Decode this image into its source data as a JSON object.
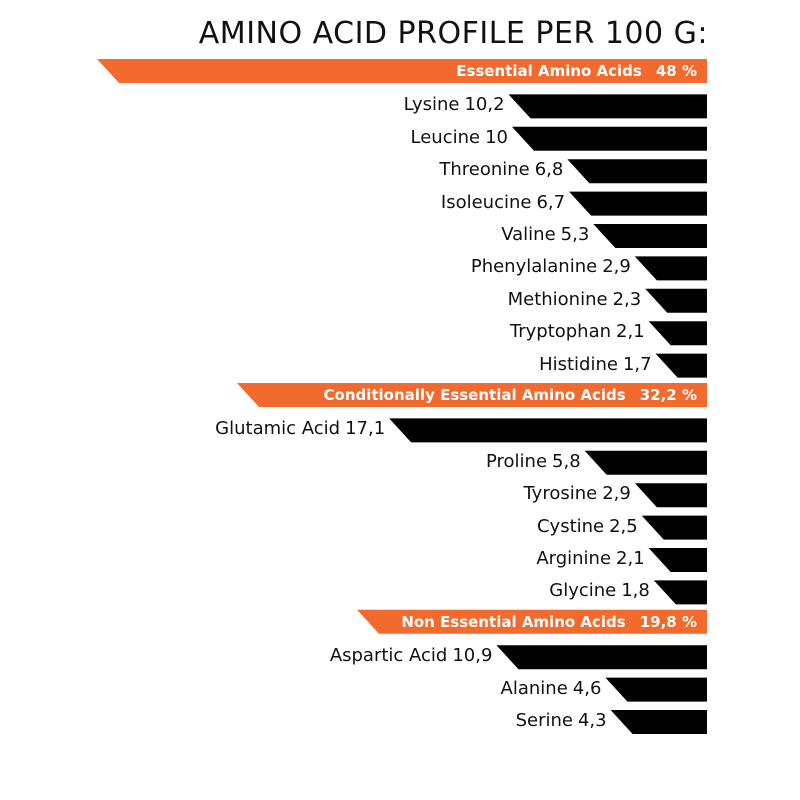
{
  "chart_data": {
    "type": "bar",
    "title": "AMINO ACID PROFILE PER 100 G:",
    "orientation": "horizontal",
    "value_labels_inline": true,
    "colors": {
      "category": "#f26a2e",
      "bar": "#000000",
      "text": "#111111",
      "category_text": "#ffffff"
    },
    "groups": [
      {
        "name": "Essential Amino Acids",
        "percent": "48 %",
        "items": [
          {
            "name": "Lysine",
            "label": "10,2",
            "value": 10.2
          },
          {
            "name": "Leucine",
            "label": "10",
            "value": 10
          },
          {
            "name": "Threonine",
            "label": "6,8",
            "value": 6.8
          },
          {
            "name": "Isoleucine",
            "label": "6,7",
            "value": 6.7
          },
          {
            "name": "Valine",
            "label": "5,3",
            "value": 5.3
          },
          {
            "name": "Phenylalanine",
            "label": "2,9",
            "value": 2.9
          },
          {
            "name": "Methionine",
            "label": "2,3",
            "value": 2.3
          },
          {
            "name": "Tryptophan",
            "label": "2,1",
            "value": 2.1
          },
          {
            "name": "Histidine",
            "label": "1,7",
            "value": 1.7
          }
        ]
      },
      {
        "name": "Conditionally Essential Amino Acids",
        "percent": "32,2 %",
        "items": [
          {
            "name": "Glutamic Acid",
            "label": "17,1",
            "value": 17.1
          },
          {
            "name": "Proline",
            "label": "5,8",
            "value": 5.8
          },
          {
            "name": "Tyrosine",
            "label": "2,9",
            "value": 2.9
          },
          {
            "name": "Cystine",
            "label": "2,5",
            "value": 2.5
          },
          {
            "name": "Arginine",
            "label": "2,1",
            "value": 2.1
          },
          {
            "name": "Glycine",
            "label": "1,8",
            "value": 1.8
          }
        ]
      },
      {
        "name": "Non Essential Amino Acids",
        "percent": "19,8 %",
        "items": [
          {
            "name": "Aspartic Acid",
            "label": "10,9",
            "value": 10.9
          },
          {
            "name": "Alanine",
            "label": "4,6",
            "value": 4.6
          },
          {
            "name": "Serine",
            "label": "4,3",
            "value": 4.3
          }
        ]
      }
    ]
  }
}
